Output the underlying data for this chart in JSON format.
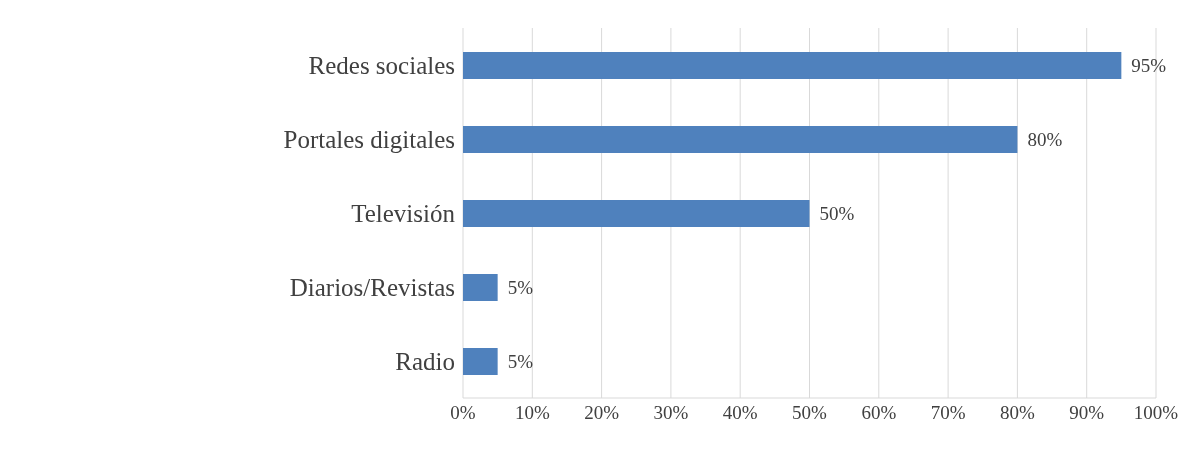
{
  "chart_data": {
    "type": "bar",
    "orientation": "horizontal",
    "categories": [
      "Redes sociales",
      "Portales digitales",
      "Televisión",
      "Diarios/Revistas",
      "Radio"
    ],
    "values": [
      95,
      80,
      50,
      5,
      5
    ],
    "value_labels": [
      "95%",
      "80%",
      "50%",
      "5%",
      "5%"
    ],
    "color": "#4f81bd",
    "xlim": [
      0,
      100
    ],
    "xticks": [
      {
        "value": 0,
        "label": "0%"
      },
      {
        "value": 10,
        "label": "10%"
      },
      {
        "value": 20,
        "label": "20%"
      },
      {
        "value": 30,
        "label": "30%"
      },
      {
        "value": 40,
        "label": "40%"
      },
      {
        "value": 50,
        "label": "50%"
      },
      {
        "value": 60,
        "label": "60%"
      },
      {
        "value": 70,
        "label": "70%"
      },
      {
        "value": 80,
        "label": "80%"
      },
      {
        "value": 90,
        "label": "90%"
      },
      {
        "value": 100,
        "label": "100%"
      }
    ],
    "grid": "x",
    "legend": false
  }
}
